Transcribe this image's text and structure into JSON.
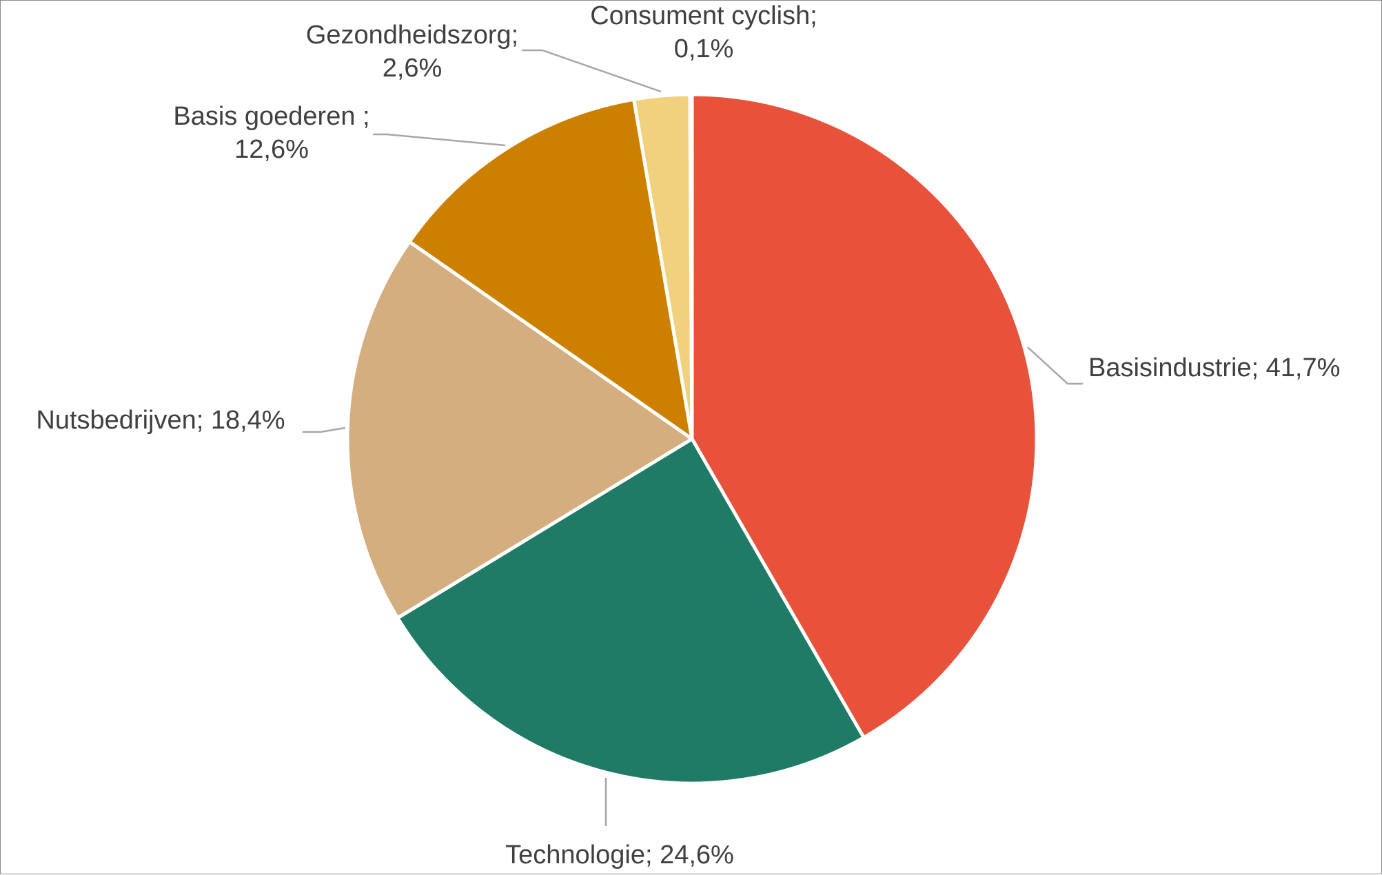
{
  "chart_data": {
    "type": "pie",
    "categories": [
      "Basisindustrie",
      "Technologie",
      "Nutsbedrijven",
      "Basis goederen ",
      "Gezondheidszorg",
      "Consument cyclish"
    ],
    "values": [
      41.7,
      24.6,
      18.4,
      12.6,
      2.6,
      0.1
    ],
    "labels": [
      {
        "line1": "Basisindustrie; 41,7%",
        "line2": ""
      },
      {
        "line1": "Technologie; 24,6%",
        "line2": ""
      },
      {
        "line1": "Nutsbedrijven; 18,4%",
        "line2": ""
      },
      {
        "line1": "Basis goederen ;",
        "line2": "12,6%"
      },
      {
        "line1": "Gezondheidszorg;",
        "line2": "2,6%"
      },
      {
        "line1": "Consument cyclish;",
        "line2": "0,1%"
      }
    ],
    "colors": [
      "#E8523A",
      "#1F7B66",
      "#D5AE7F",
      "#CD7F00",
      "#F0D27E",
      "#F5E6B8"
    ],
    "start_angle": "12 o'clock",
    "direction": "clockwise",
    "title": "",
    "legend": "none",
    "data_labels": "outside with leader lines"
  }
}
